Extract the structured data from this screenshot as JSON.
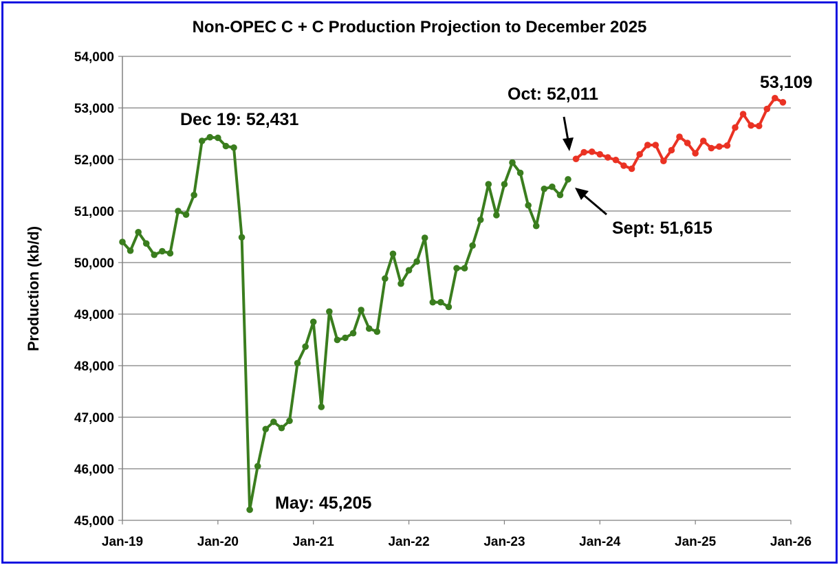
{
  "chart_data": {
    "type": "line",
    "title": "Non-OPEC C + C Production Projection to December 2025",
    "ylabel": "Production (kb/d)",
    "xlabel": "",
    "ylim": [
      45000,
      54000
    ],
    "y_ticks": [
      "45,000",
      "46,000",
      "47,000",
      "48,000",
      "49,000",
      "50,000",
      "51,000",
      "52,000",
      "53,000",
      "54,000"
    ],
    "x_ticks": [
      "Jan-19",
      "Jan-20",
      "Jan-21",
      "Jan-22",
      "Jan-23",
      "Jan-24",
      "Jan-25",
      "Jan-26"
    ],
    "x_range": [
      "2019-01",
      "2026-01"
    ],
    "grid": "horizontal",
    "legend": "none",
    "series": [
      {
        "color": "#3a7d1e",
        "x": [
          "2019-01",
          "2019-02",
          "2019-03",
          "2019-04",
          "2019-05",
          "2019-06",
          "2019-07",
          "2019-08",
          "2019-09",
          "2019-10",
          "2019-11",
          "2019-12",
          "2020-01",
          "2020-02",
          "2020-03",
          "2020-04",
          "2020-05",
          "2020-06",
          "2020-07",
          "2020-08",
          "2020-09",
          "2020-10",
          "2020-11",
          "2020-12",
          "2021-01",
          "2021-02",
          "2021-03",
          "2021-04",
          "2021-05",
          "2021-06",
          "2021-07",
          "2021-08",
          "2021-09",
          "2021-10",
          "2021-11",
          "2021-12",
          "2022-01",
          "2022-02",
          "2022-03",
          "2022-04",
          "2022-05",
          "2022-06",
          "2022-07",
          "2022-08",
          "2022-09",
          "2022-10",
          "2022-11",
          "2022-12",
          "2023-01",
          "2023-02",
          "2023-03",
          "2023-04",
          "2023-05",
          "2023-06",
          "2023-07",
          "2023-08",
          "2023-09"
        ],
        "values": [
          50400,
          50230,
          50590,
          50370,
          50150,
          50220,
          50180,
          51000,
          50930,
          51310,
          52360,
          52431,
          52420,
          52260,
          52230,
          50490,
          45205,
          46050,
          46770,
          46910,
          46790,
          46930,
          48050,
          48370,
          48850,
          47200,
          49050,
          48500,
          48540,
          48630,
          49080,
          48720,
          48660,
          49690,
          50170,
          49590,
          49850,
          50020,
          50480,
          49230,
          49230,
          49140,
          49890,
          49890,
          50330,
          50830,
          51520,
          50920,
          51520,
          51940,
          51740,
          51110,
          50710,
          51430,
          51470,
          51310,
          51615
        ]
      },
      {
        "color": "#ea3223",
        "x": [
          "2023-10",
          "2023-11",
          "2023-12",
          "2024-01",
          "2024-02",
          "2024-03",
          "2024-04",
          "2024-05",
          "2024-06",
          "2024-07",
          "2024-08",
          "2024-09",
          "2024-10",
          "2024-11",
          "2024-12",
          "2025-01",
          "2025-02",
          "2025-03",
          "2025-04",
          "2025-05",
          "2025-06",
          "2025-07",
          "2025-08",
          "2025-09",
          "2025-10",
          "2025-11",
          "2025-12"
        ],
        "values": [
          52011,
          52140,
          52150,
          52100,
          52040,
          51990,
          51880,
          51820,
          52100,
          52280,
          52280,
          51970,
          52180,
          52440,
          52320,
          52120,
          52360,
          52220,
          52250,
          52270,
          52620,
          52880,
          52660,
          52650,
          52980,
          53190,
          53109
        ]
      }
    ],
    "annotations": [
      {
        "text": "Dec 19: 52,431",
        "x": "2019-12",
        "y": 52431
      },
      {
        "text": "May: 45,205",
        "x": "2020-05",
        "y": 45205
      },
      {
        "text": "Oct: 52,011",
        "x": "2023-10",
        "y": 52011
      },
      {
        "text": "Sept: 51,615",
        "x": "2023-09",
        "y": 51615
      },
      {
        "text": "53,109",
        "x": "2025-12",
        "y": 53109
      }
    ]
  }
}
